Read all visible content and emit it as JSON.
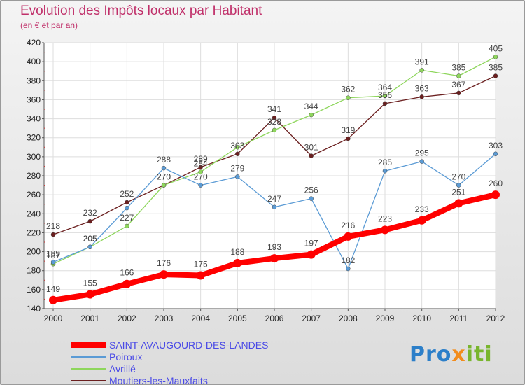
{
  "chart_data": {
    "type": "line",
    "title": "Evolution des Impôts locaux par Habitant",
    "subtitle": "(en € et par an)",
    "x": [
      "2000",
      "2001",
      "2002",
      "2003",
      "2004",
      "2005",
      "2006",
      "2007",
      "2008",
      "2009",
      "2010",
      "2011",
      "2012"
    ],
    "ylim": [
      140,
      420
    ],
    "yticks": [
      140,
      160,
      180,
      200,
      220,
      240,
      260,
      280,
      300,
      320,
      340,
      360,
      380,
      400,
      420
    ],
    "grid": true,
    "legend_position": "bottom-left",
    "series": [
      {
        "name": "SAINT-AVAUGOURD-DES-LANDES",
        "color": "#ff0000",
        "values": [
          149,
          155,
          166,
          176,
          175,
          188,
          193,
          197,
          216,
          223,
          233,
          251,
          260
        ]
      },
      {
        "name": "Poiroux",
        "color": "#5b9bd5",
        "values": [
          189,
          205,
          246,
          288,
          270,
          279,
          247,
          256,
          182,
          285,
          295,
          270,
          303
        ]
      },
      {
        "name": "Avrillé",
        "color": "#8ed65c",
        "values": [
          187,
          205,
          227,
          270,
          284,
          310,
          328,
          344,
          362,
          364,
          391,
          385,
          405
        ]
      },
      {
        "name": "Moutiers-les-Mauxfaits",
        "color": "#6b1f1f",
        "values": [
          218,
          232,
          252,
          270,
          289,
          303,
          341,
          301,
          319,
          356,
          363,
          367,
          385
        ]
      }
    ],
    "point_labels": [
      {
        "series": 0,
        "labels": [
          "149",
          "155",
          "166",
          "176",
          "175",
          "188",
          "193",
          "197",
          "216",
          "223",
          "233",
          "251",
          "260"
        ]
      },
      {
        "series": 1,
        "labels": [
          "189",
          "205",
          "",
          "288",
          "270",
          "279",
          "247",
          "256",
          "182",
          "285",
          "295",
          "270",
          "303"
        ]
      },
      {
        "series": 2,
        "labels": [
          "187",
          "205",
          "227",
          "270",
          "284",
          "",
          "328",
          "344",
          "362",
          "364",
          "391",
          "385",
          "405"
        ]
      },
      {
        "series": 3,
        "labels": [
          "218",
          "232",
          "252",
          "270",
          "289",
          "303",
          "341",
          "301",
          "319",
          "356",
          "363",
          "367",
          "385"
        ]
      }
    ]
  },
  "logo": {
    "part1": "Pro",
    "part2": "x",
    "part3": "iti"
  }
}
